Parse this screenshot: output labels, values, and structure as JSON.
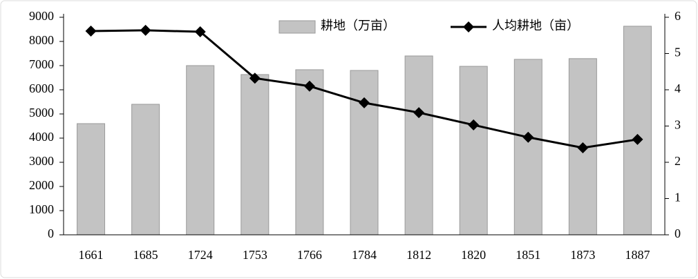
{
  "chart_data": {
    "type": "bar",
    "categories": [
      "1661",
      "1685",
      "1724",
      "1753",
      "1766",
      "1784",
      "1812",
      "1820",
      "1851",
      "1873",
      "1887"
    ],
    "series": [
      {
        "name": "耕地（万亩）",
        "type": "bar",
        "color": "#c3c3c3",
        "values": [
          4600,
          5400,
          7000,
          6630,
          6830,
          6800,
          7400,
          6970,
          7260,
          7290,
          8630
        ]
      },
      {
        "name": "人均耕地（亩）",
        "type": "line",
        "axis": "y2",
        "color": "#000000",
        "values": [
          5.62,
          5.64,
          5.6,
          4.32,
          4.1,
          3.64,
          3.37,
          3.03,
          2.69,
          2.4,
          2.63
        ]
      }
    ],
    "ylim": [
      0,
      9000
    ],
    "yticks": [
      0,
      1000,
      2000,
      3000,
      4000,
      5000,
      6000,
      7000,
      8000,
      9000
    ],
    "y2lim": [
      0,
      6
    ],
    "y2ticks": [
      0,
      1,
      2,
      3,
      4,
      5,
      6
    ],
    "legend": "top"
  }
}
